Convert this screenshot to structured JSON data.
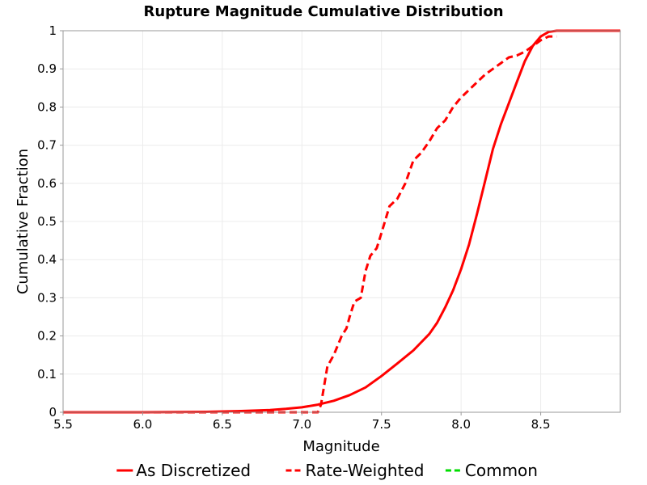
{
  "chart_data": {
    "type": "line",
    "title": "Rupture Magnitude Cumulative Distribution",
    "xlabel": "Magnitude",
    "ylabel": "Cumulative Fraction",
    "xlim": [
      5.5,
      9.0
    ],
    "ylim": [
      0,
      1
    ],
    "x_ticks": [
      "5.5",
      "6.0",
      "6.5",
      "7.0",
      "7.5",
      "8.0",
      "8.5"
    ],
    "x_tick_values": [
      5.5,
      6.0,
      6.5,
      7.0,
      7.5,
      8.0,
      8.5
    ],
    "y_ticks": [
      "0",
      "0.1",
      "0.2",
      "0.3",
      "0.4",
      "0.5",
      "0.6",
      "0.7",
      "0.8",
      "0.9",
      "1"
    ],
    "y_tick_values": [
      0,
      0.1,
      0.2,
      0.3,
      0.4,
      0.5,
      0.6,
      0.7,
      0.8,
      0.9,
      1.0
    ],
    "grid": true,
    "legend_position": "bottom",
    "series": [
      {
        "name": "As Discretized",
        "color": "#ff0000",
        "dash": "solid",
        "points": [
          [
            5.5,
            0.0
          ],
          [
            6.0,
            0.0
          ],
          [
            6.4,
            0.001
          ],
          [
            6.6,
            0.003
          ],
          [
            6.8,
            0.006
          ],
          [
            6.9,
            0.009
          ],
          [
            7.0,
            0.013
          ],
          [
            7.1,
            0.02
          ],
          [
            7.2,
            0.03
          ],
          [
            7.3,
            0.045
          ],
          [
            7.4,
            0.065
          ],
          [
            7.5,
            0.095
          ],
          [
            7.6,
            0.128
          ],
          [
            7.7,
            0.162
          ],
          [
            7.8,
            0.205
          ],
          [
            7.85,
            0.235
          ],
          [
            7.9,
            0.275
          ],
          [
            7.95,
            0.32
          ],
          [
            8.0,
            0.375
          ],
          [
            8.05,
            0.44
          ],
          [
            8.1,
            0.52
          ],
          [
            8.15,
            0.605
          ],
          [
            8.2,
            0.69
          ],
          [
            8.25,
            0.755
          ],
          [
            8.3,
            0.81
          ],
          [
            8.35,
            0.865
          ],
          [
            8.4,
            0.92
          ],
          [
            8.45,
            0.96
          ],
          [
            8.5,
            0.985
          ],
          [
            8.55,
            0.997
          ],
          [
            8.6,
            1.0
          ],
          [
            9.0,
            1.0
          ]
        ]
      },
      {
        "name": "Rate-Weighted",
        "color": "#ff0000",
        "dash": "dashed",
        "points": [
          [
            5.5,
            0.0
          ],
          [
            7.1,
            0.0
          ],
          [
            7.12,
            0.02
          ],
          [
            7.16,
            0.12
          ],
          [
            7.2,
            0.15
          ],
          [
            7.25,
            0.2
          ],
          [
            7.28,
            0.22
          ],
          [
            7.3,
            0.25
          ],
          [
            7.33,
            0.29
          ],
          [
            7.37,
            0.3
          ],
          [
            7.4,
            0.37
          ],
          [
            7.43,
            0.41
          ],
          [
            7.47,
            0.43
          ],
          [
            7.5,
            0.47
          ],
          [
            7.55,
            0.54
          ],
          [
            7.6,
            0.56
          ],
          [
            7.65,
            0.6
          ],
          [
            7.7,
            0.66
          ],
          [
            7.75,
            0.68
          ],
          [
            7.8,
            0.71
          ],
          [
            7.85,
            0.745
          ],
          [
            7.9,
            0.765
          ],
          [
            7.95,
            0.8
          ],
          [
            8.0,
            0.825
          ],
          [
            8.05,
            0.845
          ],
          [
            8.1,
            0.865
          ],
          [
            8.15,
            0.885
          ],
          [
            8.2,
            0.9
          ],
          [
            8.25,
            0.915
          ],
          [
            8.3,
            0.93
          ],
          [
            8.35,
            0.935
          ],
          [
            8.4,
            0.945
          ],
          [
            8.45,
            0.96
          ],
          [
            8.5,
            0.975
          ],
          [
            8.55,
            0.985
          ],
          [
            8.6,
            0.985
          ]
        ]
      },
      {
        "name": "Common",
        "color": "#00dd00",
        "dash": "dashed",
        "points": []
      }
    ]
  }
}
